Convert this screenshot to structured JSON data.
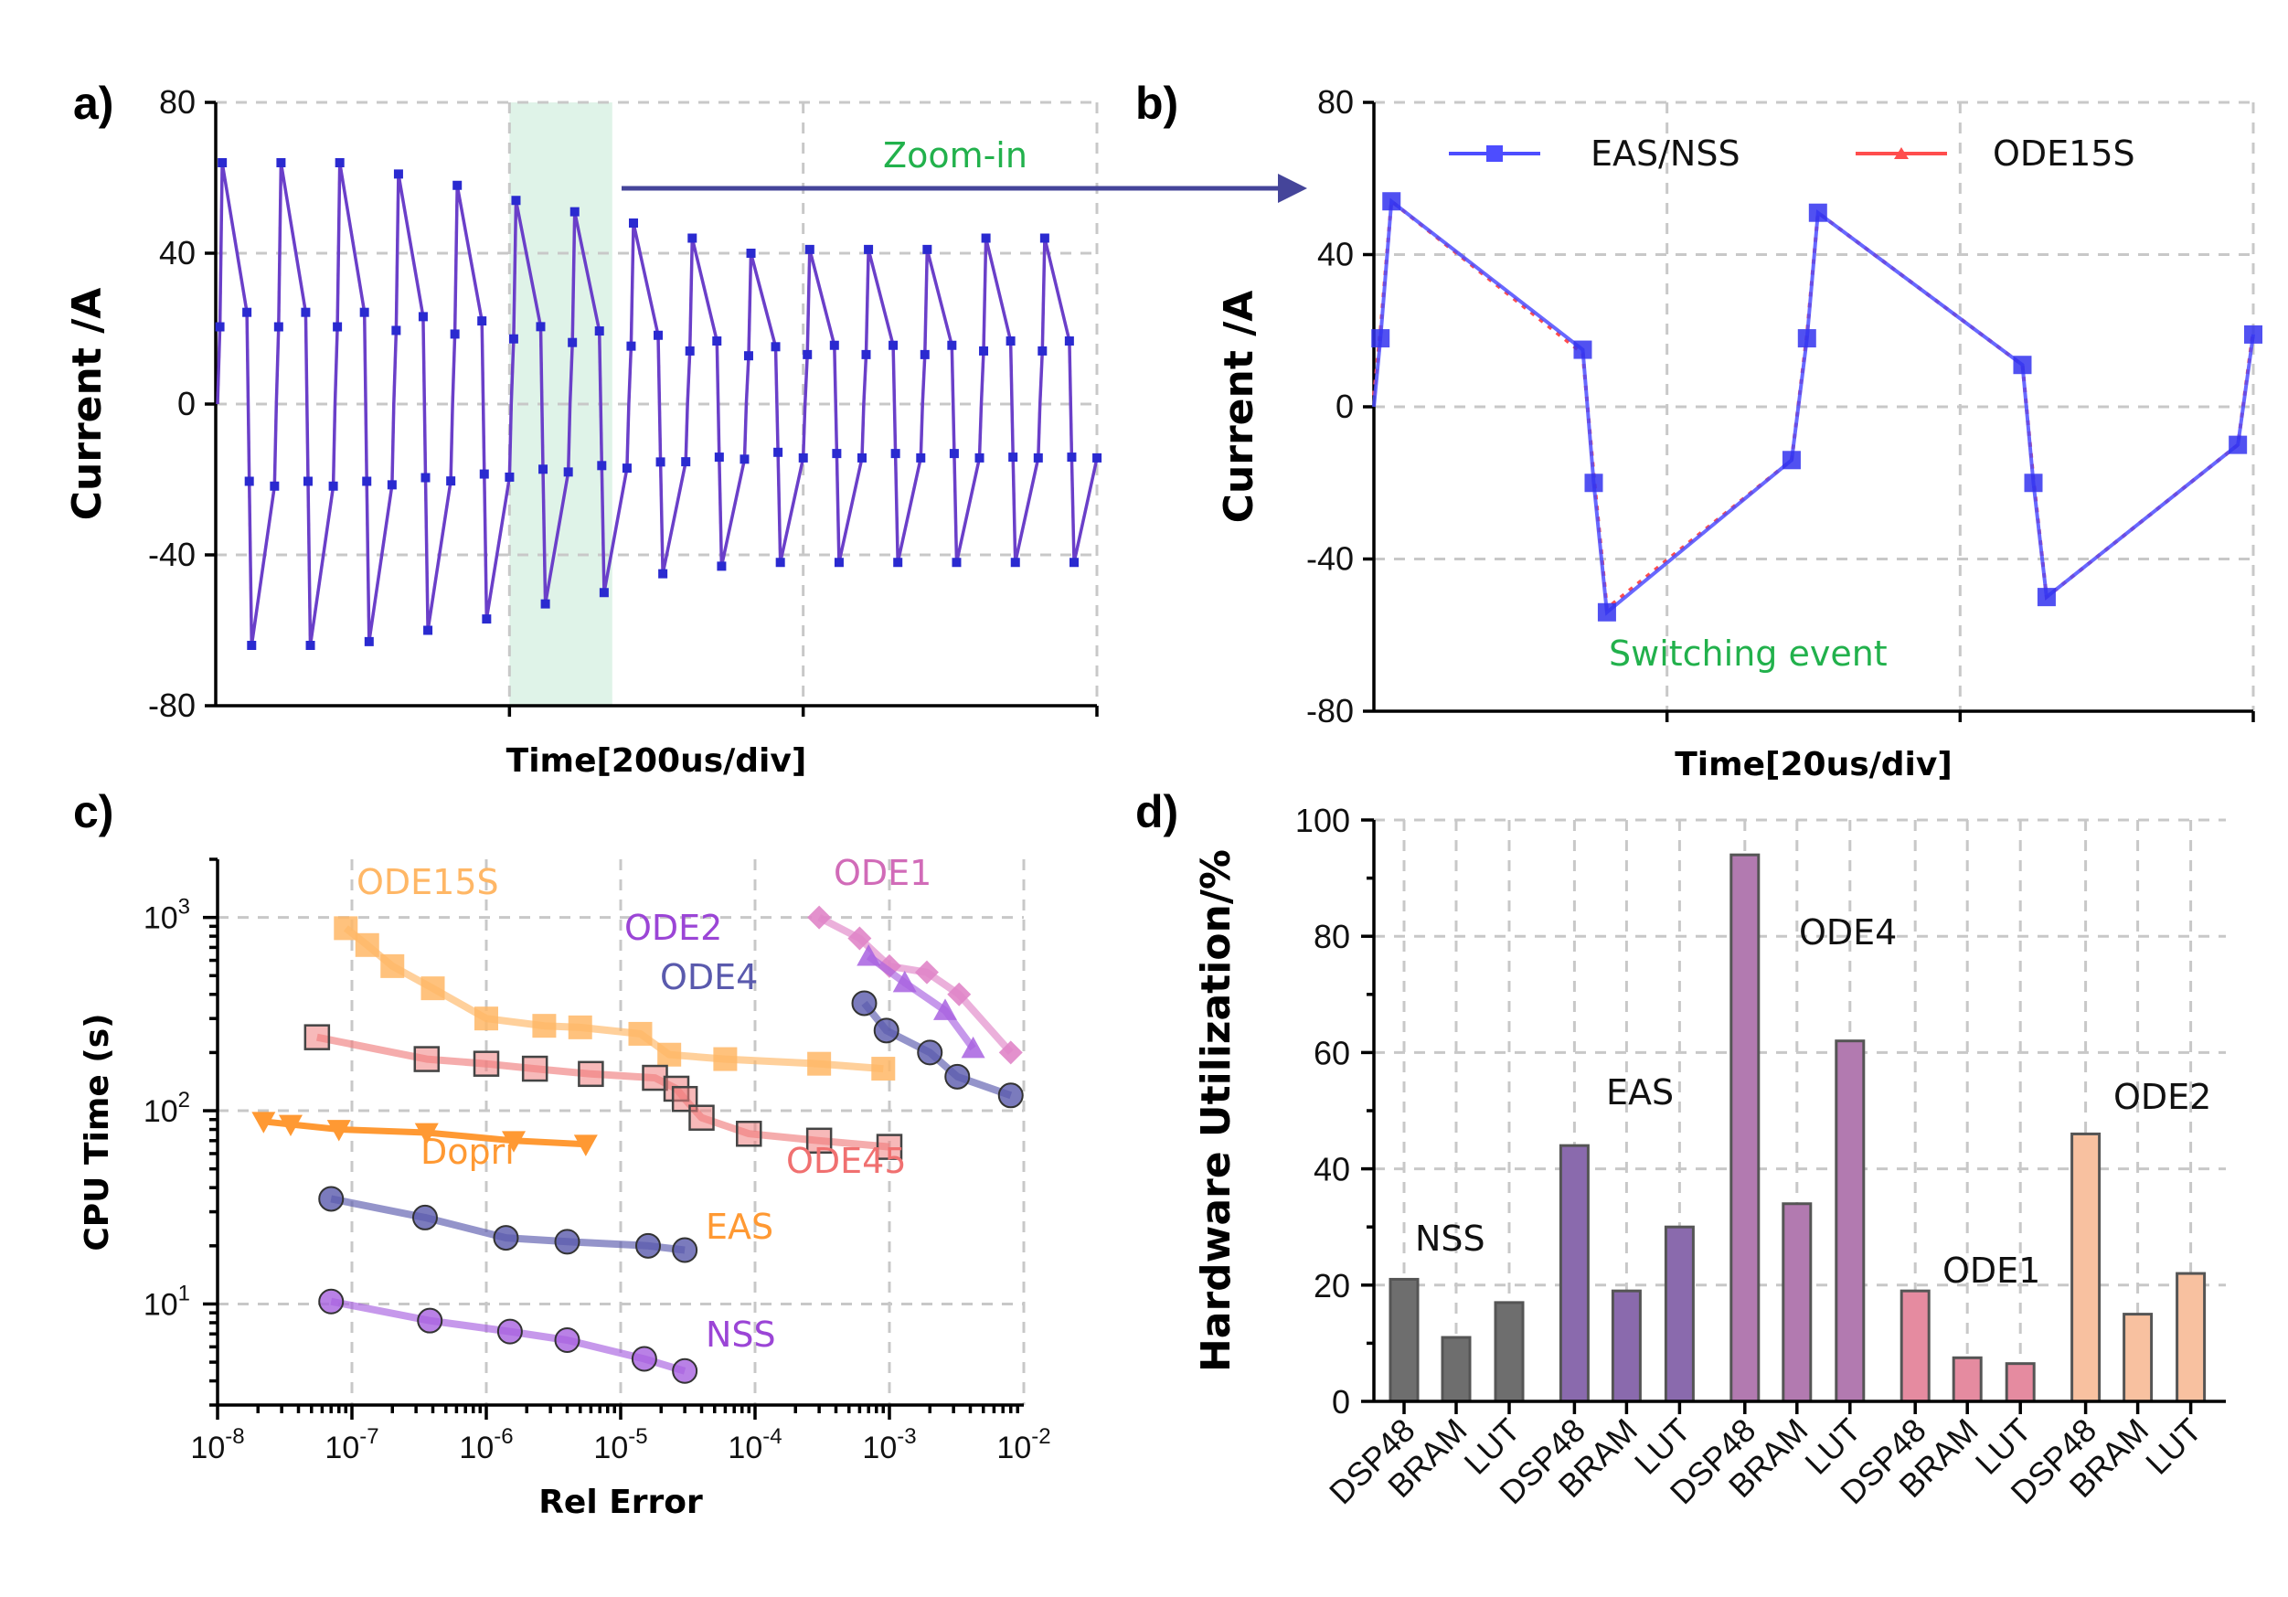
{
  "panels": {
    "a": "a)",
    "b": "b)",
    "c": "c)",
    "d": "d)"
  },
  "colors": {
    "eas_nss": "#4d4dff",
    "ode15s_red": "#ff4d4d",
    "trace_a": "#6a3fc9",
    "trace_a_red": "#e8435a",
    "arrow": "#45459a",
    "zoom_band": "#dff3e8",
    "green": "#22b14c"
  },
  "chart_data": [
    {
      "id": "a",
      "type": "line",
      "title": "",
      "xlabel": "Time[200us/div]",
      "ylabel": "Current /A",
      "ylim": [
        -80,
        80
      ],
      "yticks": [
        "80",
        "40",
        "0",
        "-40",
        "-80"
      ],
      "xdivs": 3,
      "zoom_region_div": [
        1.0,
        0.35
      ],
      "annotation": "Zoom-in",
      "description_of_shape": "sawtooth switching current; peaks decay from ~64 A to ~44 A",
      "cycles": [
        {
          "peak": 64,
          "trough": -64
        },
        {
          "peak": 64,
          "trough": -64
        },
        {
          "peak": 64,
          "trough": -63
        },
        {
          "peak": 61,
          "trough": -60
        },
        {
          "peak": 58,
          "trough": -57
        },
        {
          "peak": 54,
          "trough": -53
        },
        {
          "peak": 51,
          "trough": -50
        },
        {
          "peak": 48,
          "trough": -45
        },
        {
          "peak": 44,
          "trough": -43
        },
        {
          "peak": 40,
          "trough": -42
        },
        {
          "peak": 41,
          "trough": -42
        },
        {
          "peak": 41,
          "trough": -42
        },
        {
          "peak": 41,
          "trough": -42
        },
        {
          "peak": 44,
          "trough": -42
        },
        {
          "peak": 44,
          "trough": -42
        }
      ]
    },
    {
      "id": "b",
      "type": "line",
      "xlabel": "Time[20us/div]",
      "ylabel": "Current /A",
      "ylim": [
        -80,
        80
      ],
      "yticks": [
        "80",
        "40",
        "0",
        "-40",
        "-80"
      ],
      "xdivs": 3,
      "annotation": "Switching event",
      "legend": [
        "EAS/NSS",
        "ODE15S"
      ],
      "series": [
        {
          "name": "EAS/NSS",
          "x": [
            0.0,
            0.03,
            0.08,
            0.95,
            1.0,
            1.06,
            1.9,
            1.97,
            2.02,
            2.95,
            3.0,
            3.06,
            3.93,
            4.0
          ],
          "y": [
            0,
            18,
            54,
            15,
            -20,
            -54,
            -14,
            18,
            51,
            11,
            -20,
            -50,
            -10,
            19
          ]
        },
        {
          "name": "ODE15S",
          "x": [
            0.0,
            0.03,
            0.08,
            0.95,
            1.0,
            1.06,
            1.9,
            1.97,
            2.02,
            2.95,
            3.0,
            3.06,
            3.93,
            4.0
          ],
          "y": [
            3,
            20,
            54,
            14,
            -18,
            -53,
            -14,
            19,
            51,
            11,
            -19,
            -50,
            -10,
            20
          ]
        }
      ]
    },
    {
      "id": "c",
      "type": "scatter",
      "xlabel": "Rel Error",
      "ylabel": "CPU Time (s)",
      "xscale": "log",
      "yscale": "log",
      "xlim": [
        1e-08,
        0.01
      ],
      "ylim": [
        3,
        2000
      ],
      "xtick_base": "10",
      "xtick_exps": [
        "-8",
        "-7",
        "-6",
        "-5",
        "-4",
        "-3",
        "-2"
      ],
      "ytick_exps": [
        "1",
        "2",
        "3"
      ],
      "series": [
        {
          "name": "ODE15S",
          "color": "#ffb766",
          "marker": "square",
          "x": [
            9e-08,
            1.3e-07,
            2e-07,
            4e-07,
            1e-06,
            2.7e-06,
            5e-06,
            1.4e-05,
            2.3e-05,
            6e-05,
            0.0003,
            0.0009
          ],
          "y": [
            880,
            720,
            560,
            430,
            300,
            275,
            270,
            250,
            195,
            185,
            175,
            165
          ]
        },
        {
          "name": "ODE45",
          "color": "#f08080",
          "marker": "square-outline",
          "x": [
            5.5e-08,
            3.6e-07,
            1e-06,
            2.3e-06,
            6e-06,
            1.8e-05,
            2.6e-05,
            3e-05,
            4e-05,
            9e-05,
            0.0003,
            0.001
          ],
          "y": [
            240,
            185,
            175,
            165,
            155,
            148,
            130,
            115,
            92,
            76,
            70,
            65
          ]
        },
        {
          "name": "ODE1",
          "color": "#e085c8",
          "marker": "diamond",
          "x": [
            0.0003,
            0.0006,
            0.001,
            0.0019,
            0.0033,
            0.008
          ],
          "y": [
            1000,
            780,
            560,
            520,
            400,
            200
          ]
        },
        {
          "name": "ODE2",
          "color": "#a861e0",
          "marker": "triangle",
          "x": [
            0.0007,
            0.0013,
            0.0026,
            0.0042
          ],
          "y": [
            630,
            460,
            330,
            210
          ]
        },
        {
          "name": "ODE4",
          "color": "#5a5aad",
          "marker": "circle",
          "x": [
            0.00065,
            0.00095,
            0.002,
            0.0032,
            0.008
          ],
          "y": [
            360,
            260,
            200,
            150,
            120
          ]
        },
        {
          "name": "Dopri",
          "color": "#ff9933",
          "marker": "triangle-down",
          "x": [
            2.2e-08,
            3.5e-08,
            8e-08,
            3.6e-07,
            1.6e-06,
            5.5e-06
          ],
          "y": [
            88,
            85,
            80,
            77,
            70,
            67
          ]
        },
        {
          "name": "EAS",
          "color": "#5a5aad",
          "marker": "circle",
          "x": [
            7e-08,
            3.5e-07,
            1.4e-06,
            4e-06,
            1.6e-05,
            3e-05
          ],
          "y": [
            35,
            28,
            22,
            21,
            20,
            19
          ]
        },
        {
          "name": "NSS",
          "color": "#a861e0",
          "marker": "circle",
          "x": [
            7e-08,
            3.8e-07,
            1.5e-06,
            4e-06,
            1.5e-05,
            3e-05
          ],
          "y": [
            10.3,
            8.2,
            7.2,
            6.5,
            5.2,
            4.5
          ]
        }
      ],
      "labels": [
        {
          "text": "ODE15S",
          "color": "#ffb766"
        },
        {
          "text": "ODE1",
          "color": "#d16bb8"
        },
        {
          "text": "ODE2",
          "color": "#9b45d6"
        },
        {
          "text": "ODE4",
          "color": "#5a5aad"
        },
        {
          "text": "Dopri",
          "color": "#ff9933"
        },
        {
          "text": "ODE45",
          "color": "#f07070"
        },
        {
          "text": "EAS",
          "color": "#ff9933"
        },
        {
          "text": "NSS",
          "color": "#9b45d6"
        }
      ]
    },
    {
      "id": "d",
      "type": "bar",
      "xlabel": "",
      "ylabel": "Hardware Utilization/%",
      "ylim": [
        0,
        100
      ],
      "yticks": [
        "100",
        "80",
        "60",
        "40",
        "20",
        "0"
      ],
      "categories": [
        "DSP48",
        "BRAM",
        "LUT"
      ],
      "series": [
        {
          "name": "NSS",
          "color": "#6e6e6e",
          "values": [
            21,
            11,
            17
          ]
        },
        {
          "name": "EAS",
          "color": "#8a6aad",
          "values": [
            44,
            19,
            30
          ]
        },
        {
          "name": "ODE4",
          "color": "#b27ab0",
          "values": [
            94,
            34,
            62
          ]
        },
        {
          "name": "ODE1",
          "color": "#e58ba0",
          "values": [
            19,
            7.5,
            6.5
          ]
        },
        {
          "name": "ODE2",
          "color": "#f8c1a0",
          "values": [
            46,
            15,
            22
          ]
        }
      ]
    }
  ]
}
